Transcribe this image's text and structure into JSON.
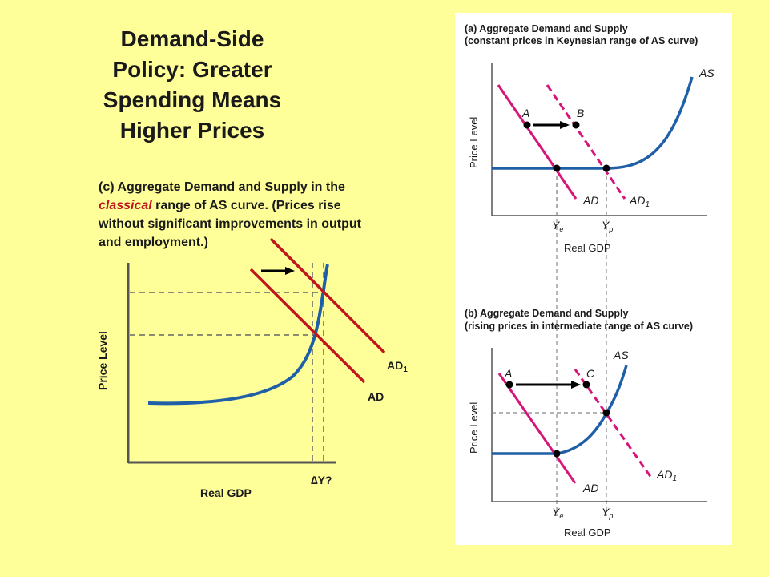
{
  "title_lines": [
    "Demand-Side",
    "Policy: Greater",
    "Spending Means",
    "Higher Prices"
  ],
  "caption": {
    "prefix": "(c) Aggregate Demand and Supply in the ",
    "highlight": "classical",
    "suffix": " range of AS curve. (Prices rise without significant improvements in output and employment.)"
  },
  "panel_c": {
    "y_axis_label": "Price Level",
    "x_axis_label": "Real GDP",
    "delta_y_label": "∆Y?",
    "ad_label": "AD",
    "ad1_label": "AD",
    "ad1_subscript": "1"
  },
  "panel_a": {
    "title_line1": "(a) Aggregate Demand and Supply",
    "title_line2": "(constant prices in Keynesian range of AS curve)",
    "y_axis_label": "Price Level",
    "x_axis_label": "Real GDP",
    "as_label": "AS",
    "ad_label": "AD",
    "ad1_label": "AD",
    "ad1_subscript": "1",
    "point_a": "A",
    "point_b": "B",
    "ye": "Y",
    "ye_sub": "e",
    "yp": "Y",
    "yp_sub": "p"
  },
  "panel_b": {
    "title_line1": "(b) Aggregate Demand and Supply",
    "title_line2": "(rising prices in intermediate range of AS curve)",
    "y_axis_label": "Price Level",
    "x_axis_label": "Real GDP",
    "as_label": "AS",
    "ad_label": "AD",
    "ad1_label": "AD",
    "ad1_subscript": "1",
    "point_a": "A",
    "point_c": "C",
    "ye": "Y",
    "ye_sub": "e",
    "yp": "Y",
    "yp_sub": "p"
  },
  "colors": {
    "background": "#ffff99",
    "as_curve": "#1f5fa8",
    "ad_panel_c": "#c0161c",
    "ad_panels_ab": "#d6147a",
    "classical_text": "#c0161c",
    "panel_bg": "#ffffff",
    "axis": "#555555"
  }
}
